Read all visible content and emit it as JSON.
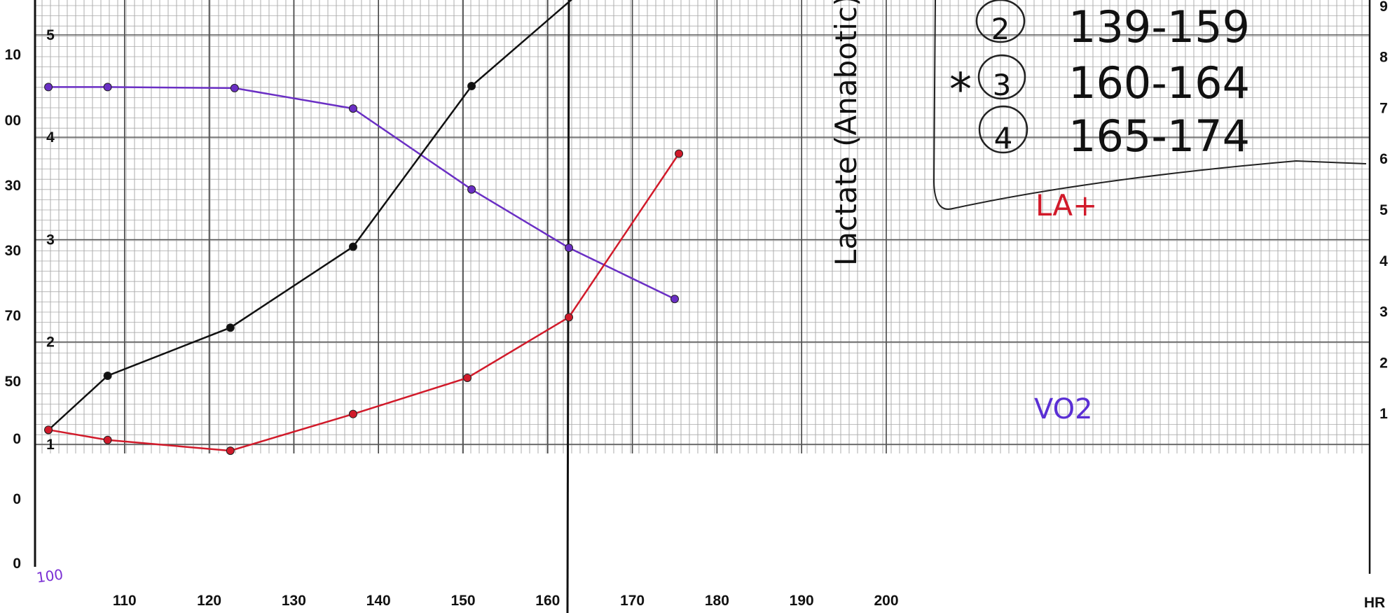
{
  "chart_data": {
    "type": "line",
    "title": "",
    "xlabel": "HR",
    "x_ticks": [
      "110",
      "120",
      "130",
      "140",
      "150",
      "160",
      "170",
      "180",
      "190",
      "200"
    ],
    "x_start_label": "100",
    "y_left_outer_ticks": [
      "10",
      "00",
      "30",
      "30",
      "70",
      "50",
      "0",
      "0",
      "0"
    ],
    "y_left_inner_ticks": [
      "5",
      "4",
      "3",
      "2",
      "1"
    ],
    "y_right_ticks": [
      "1",
      "2",
      "3",
      "4",
      "5",
      "6",
      "7",
      "8",
      "9"
    ],
    "xlim": [
      100,
      200
    ],
    "ylim_left": [
      1,
      5
    ],
    "ylim_right": [
      0,
      9
    ],
    "grid": true,
    "vertical_marker": {
      "x": 162.5,
      "label": "Lactate (Anabotic)"
    },
    "series": [
      {
        "name": "VO2",
        "label": "VO2",
        "color": "#6a2fc4",
        "axis": "left",
        "x": [
          101,
          108,
          123,
          137,
          151,
          162.5,
          175
        ],
        "y": [
          4.49,
          4.49,
          4.48,
          4.28,
          3.49,
          2.92,
          2.42
        ]
      },
      {
        "name": "",
        "color": "#111111",
        "axis": "left",
        "x": [
          101,
          108,
          122.5,
          137,
          151,
          165
        ],
        "y": [
          1.14,
          1.67,
          2.14,
          2.93,
          4.5,
          5.5
        ]
      },
      {
        "name": "LA",
        "label": "LA+",
        "color": "#d11a2a",
        "axis": "right",
        "x": [
          101,
          108,
          122.5,
          137,
          150.5,
          162.5,
          175.5
        ],
        "y": [
          0.67,
          0.47,
          0.26,
          0.98,
          1.69,
          2.88,
          6.09
        ]
      }
    ],
    "annotations": [
      "2  139-159",
      "3  160-164",
      "4  165-174",
      "*"
    ]
  }
}
